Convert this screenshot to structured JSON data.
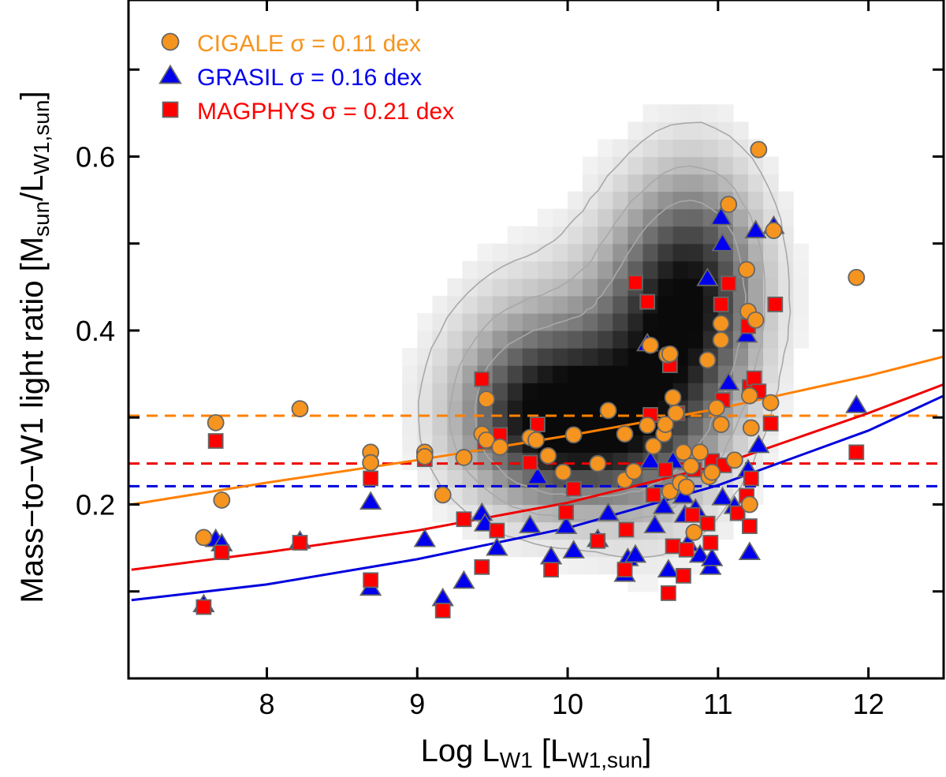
{
  "chart_data": {
    "type": "scatter",
    "title": "",
    "xlabel": {
      "main": "Log L",
      "sub": "W1",
      "rest": " [L",
      "sub2": "W1,sun",
      "close": "]"
    },
    "ylabel": {
      "main": "Mass−to−W1 light ratio [M",
      "sub": "sun",
      "mid": "/L",
      "sub2": "W1,sun",
      "close": "]"
    },
    "xlim": [
      7.08,
      12.5
    ],
    "ylim": [
      0.0,
      0.78
    ],
    "x_ticks": [
      8,
      9,
      10,
      11,
      12
    ],
    "y_ticks": [
      0.2,
      0.4,
      0.6
    ],
    "y_minor_ticks": [
      0.1,
      0.3,
      0.5,
      0.7
    ],
    "legend_position": "top-left",
    "series": [
      {
        "name": "CIGALE",
        "label": "CIGALE σ = 0.11 dex",
        "marker": "circle",
        "color": "#f5941f",
        "line_color": "#ff8000",
        "median": 0.302,
        "fit": [
          [
            7.1,
            0.2
          ],
          [
            8,
            0.225
          ],
          [
            9,
            0.251
          ],
          [
            10,
            0.279
          ],
          [
            11,
            0.31
          ],
          [
            12,
            0.348
          ],
          [
            12.5,
            0.37
          ]
        ],
        "points": [
          [
            7.58,
            0.162
          ],
          [
            7.66,
            0.294
          ],
          [
            7.7,
            0.205
          ],
          [
            8.22,
            0.31
          ],
          [
            8.69,
            0.26
          ],
          [
            8.69,
            0.248
          ],
          [
            9.05,
            0.26
          ],
          [
            9.05,
            0.255
          ],
          [
            9.17,
            0.211
          ],
          [
            9.31,
            0.254
          ],
          [
            9.43,
            0.281
          ],
          [
            9.46,
            0.321
          ],
          [
            9.46,
            0.274
          ],
          [
            9.55,
            0.266
          ],
          [
            9.75,
            0.277
          ],
          [
            9.79,
            0.274
          ],
          [
            9.87,
            0.256
          ],
          [
            9.97,
            0.237
          ],
          [
            10.04,
            0.28
          ],
          [
            10.2,
            0.247
          ],
          [
            10.27,
            0.308
          ],
          [
            10.38,
            0.228
          ],
          [
            10.38,
            0.281
          ],
          [
            10.44,
            0.238
          ],
          [
            10.53,
            0.291
          ],
          [
            10.55,
            0.383
          ],
          [
            10.57,
            0.267
          ],
          [
            10.64,
            0.281
          ],
          [
            10.65,
            0.292
          ],
          [
            10.66,
            0.372
          ],
          [
            10.68,
            0.373
          ],
          [
            10.68,
            0.215
          ],
          [
            10.7,
            0.323
          ],
          [
            10.72,
            0.305
          ],
          [
            10.75,
            0.225
          ],
          [
            10.77,
            0.26
          ],
          [
            10.79,
            0.22
          ],
          [
            10.82,
            0.244
          ],
          [
            10.84,
            0.168
          ],
          [
            10.88,
            0.26
          ],
          [
            10.93,
            0.366
          ],
          [
            10.94,
            0.232
          ],
          [
            10.96,
            0.237
          ],
          [
            10.99,
            0.311
          ],
          [
            11.02,
            0.408
          ],
          [
            11.02,
            0.389
          ],
          [
            11.02,
            0.292
          ],
          [
            11.07,
            0.545
          ],
          [
            11.11,
            0.251
          ],
          [
            11.19,
            0.47
          ],
          [
            11.2,
            0.422
          ],
          [
            11.21,
            0.325
          ],
          [
            11.21,
            0.2
          ],
          [
            11.22,
            0.288
          ],
          [
            11.25,
            0.412
          ],
          [
            11.27,
            0.608
          ],
          [
            11.35,
            0.317
          ],
          [
            11.37,
            0.515
          ],
          [
            11.92,
            0.461
          ]
        ]
      },
      {
        "name": "GRASIL",
        "label": "GRASIL σ = 0.16 dex",
        "marker": "triangle",
        "color": "#0000ee",
        "line_color": "#0000dd",
        "median": 0.221,
        "fit": [
          [
            7.1,
            0.09
          ],
          [
            8,
            0.108
          ],
          [
            9,
            0.137
          ],
          [
            10,
            0.173
          ],
          [
            11,
            0.222
          ],
          [
            12,
            0.285
          ],
          [
            12.5,
            0.325
          ]
        ],
        "points": [
          [
            7.58,
            0.085
          ],
          [
            7.66,
            0.16
          ],
          [
            7.7,
            0.155
          ],
          [
            8.22,
            0.158
          ],
          [
            8.69,
            0.203
          ],
          [
            8.69,
            0.104
          ],
          [
            9.05,
            0.16
          ],
          [
            9.17,
            0.092
          ],
          [
            9.31,
            0.112
          ],
          [
            9.43,
            0.19
          ],
          [
            9.45,
            0.178
          ],
          [
            9.53,
            0.15
          ],
          [
            9.75,
            0.176
          ],
          [
            9.8,
            0.232
          ],
          [
            9.89,
            0.14
          ],
          [
            9.99,
            0.175
          ],
          [
            10.04,
            0.147
          ],
          [
            10.2,
            0.16
          ],
          [
            10.27,
            0.19
          ],
          [
            10.38,
            0.12
          ],
          [
            10.4,
            0.138
          ],
          [
            10.45,
            0.142
          ],
          [
            10.53,
            0.385
          ],
          [
            10.55,
            0.25
          ],
          [
            10.58,
            0.176
          ],
          [
            10.64,
            0.198
          ],
          [
            10.67,
            0.125
          ],
          [
            10.7,
            0.25
          ],
          [
            10.77,
            0.21
          ],
          [
            10.78,
            0.188
          ],
          [
            10.8,
            0.155
          ],
          [
            10.85,
            0.195
          ],
          [
            10.88,
            0.142
          ],
          [
            10.93,
            0.46
          ],
          [
            10.95,
            0.128
          ],
          [
            10.96,
            0.138
          ],
          [
            11.02,
            0.53
          ],
          [
            11.03,
            0.5
          ],
          [
            11.03,
            0.208
          ],
          [
            11.07,
            0.34
          ],
          [
            11.11,
            0.198
          ],
          [
            11.19,
            0.395
          ],
          [
            11.2,
            0.24
          ],
          [
            11.21,
            0.145
          ],
          [
            11.25,
            0.515
          ],
          [
            11.27,
            0.268
          ],
          [
            11.37,
            0.52
          ],
          [
            11.92,
            0.314
          ]
        ]
      },
      {
        "name": "MAGPHYS",
        "label": "MAGPHYS σ = 0.21 dex",
        "marker": "square",
        "color": "#ff0000",
        "line_color": "#ee0000",
        "median": 0.247,
        "fit": [
          [
            7.1,
            0.125
          ],
          [
            8,
            0.145
          ],
          [
            9,
            0.17
          ],
          [
            10,
            0.202
          ],
          [
            11,
            0.245
          ],
          [
            12,
            0.305
          ],
          [
            12.5,
            0.338
          ]
        ],
        "points": [
          [
            7.58,
            0.082
          ],
          [
            7.66,
            0.273
          ],
          [
            7.7,
            0.145
          ],
          [
            8.22,
            0.156
          ],
          [
            8.69,
            0.23
          ],
          [
            8.69,
            0.113
          ],
          [
            9.05,
            0.252
          ],
          [
            9.17,
            0.078
          ],
          [
            9.31,
            0.183
          ],
          [
            9.43,
            0.128
          ],
          [
            9.43,
            0.344
          ],
          [
            9.45,
            0.272
          ],
          [
            9.53,
            0.17
          ],
          [
            9.55,
            0.28
          ],
          [
            9.75,
            0.248
          ],
          [
            9.8,
            0.292
          ],
          [
            9.89,
            0.125
          ],
          [
            9.99,
            0.191
          ],
          [
            10.04,
            0.218
          ],
          [
            10.2,
            0.158
          ],
          [
            10.38,
            0.125
          ],
          [
            10.39,
            0.171
          ],
          [
            10.45,
            0.455
          ],
          [
            10.53,
            0.433
          ],
          [
            10.55,
            0.303
          ],
          [
            10.57,
            0.211
          ],
          [
            10.65,
            0.24
          ],
          [
            10.67,
            0.098
          ],
          [
            10.68,
            0.36
          ],
          [
            10.7,
            0.152
          ],
          [
            10.73,
            0.305
          ],
          [
            10.77,
            0.118
          ],
          [
            10.79,
            0.148
          ],
          [
            10.83,
            0.188
          ],
          [
            10.84,
            0.24
          ],
          [
            10.93,
            0.178
          ],
          [
            10.95,
            0.156
          ],
          [
            10.96,
            0.25
          ],
          [
            11.02,
            0.43
          ],
          [
            11.03,
            0.32
          ],
          [
            11.04,
            0.245
          ],
          [
            11.07,
            0.454
          ],
          [
            11.13,
            0.19
          ],
          [
            11.19,
            0.21
          ],
          [
            11.21,
            0.175
          ],
          [
            11.22,
            0.23
          ],
          [
            11.2,
            0.405
          ],
          [
            11.21,
            0.335
          ],
          [
            11.24,
            0.345
          ],
          [
            11.27,
            0.33
          ],
          [
            11.35,
            0.293
          ],
          [
            11.38,
            0.43
          ],
          [
            11.92,
            0.26
          ]
        ]
      }
    ],
    "density": {
      "description": "2D histogram of the parent galaxy sample (grayscale) with contours",
      "blobs": [
        {
          "center": [
            10.05,
            0.29
          ],
          "sigma": [
            0.42,
            0.055
          ],
          "weight": 0.85,
          "rotate_slope": 0.0
        },
        {
          "center": [
            10.55,
            0.36
          ],
          "sigma": [
            0.33,
            0.1
          ],
          "weight": 0.7
        },
        {
          "center": [
            10.85,
            0.45
          ],
          "sigma": [
            0.28,
            0.085
          ],
          "weight": 0.8
        },
        {
          "center": [
            9.8,
            0.33
          ],
          "sigma": [
            0.35,
            0.075
          ],
          "weight": 0.55
        }
      ]
    }
  }
}
